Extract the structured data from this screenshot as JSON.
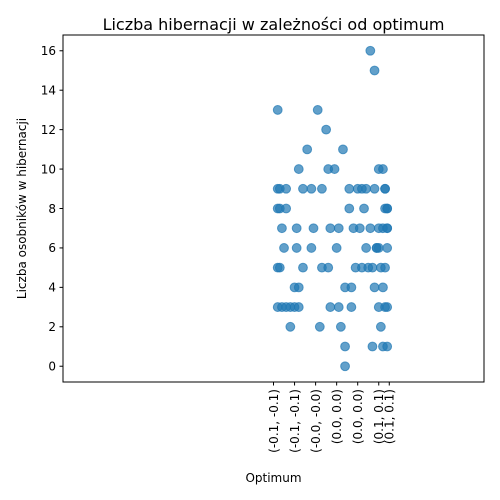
{
  "chart_data": {
    "type": "scatter",
    "title": "Liczba hibernacji w zależności od optimum",
    "xlabel": "Optimum",
    "ylabel": "Liczba osobników w hibernacji",
    "x_categories": [
      "(-0.1, -0.1)",
      "(-0.1, -0.1)",
      "(-0.0, -0.0)",
      "(0.0, 0.0)",
      "(0.0, 0.0)",
      "(0.1, 0.1)",
      "(0.1, 0.1)"
    ],
    "ylim": [
      -0.8,
      16.8
    ],
    "yticks": [
      0,
      2,
      4,
      6,
      8,
      10,
      12,
      14,
      16
    ],
    "grid": false,
    "legend": "none",
    "color": "#1f77b4",
    "opacity": 0.7,
    "points": [
      {
        "x": -0.098,
        "y": 13
      },
      {
        "x": -0.098,
        "y": 9
      },
      {
        "x": -0.097,
        "y": 9
      },
      {
        "x": -0.098,
        "y": 8
      },
      {
        "x": -0.097,
        "y": 8
      },
      {
        "x": -0.096,
        "y": 7
      },
      {
        "x": -0.095,
        "y": 6
      },
      {
        "x": -0.098,
        "y": 5
      },
      {
        "x": -0.097,
        "y": 5
      },
      {
        "x": -0.098,
        "y": 3
      },
      {
        "x": -0.096,
        "y": 3
      },
      {
        "x": -0.094,
        "y": 3
      },
      {
        "x": -0.092,
        "y": 3
      },
      {
        "x": -0.09,
        "y": 3
      },
      {
        "x": -0.088,
        "y": 3
      },
      {
        "x": -0.092,
        "y": 2
      },
      {
        "x": -0.09,
        "y": 4
      },
      {
        "x": -0.088,
        "y": 4
      },
      {
        "x": -0.094,
        "y": 9
      },
      {
        "x": -0.094,
        "y": 8
      },
      {
        "x": -0.088,
        "y": 10
      },
      {
        "x": -0.086,
        "y": 9
      },
      {
        "x": -0.089,
        "y": 7
      },
      {
        "x": -0.089,
        "y": 6
      },
      {
        "x": -0.086,
        "y": 5
      },
      {
        "x": -0.084,
        "y": 11
      },
      {
        "x": -0.082,
        "y": 9
      },
      {
        "x": -0.081,
        "y": 7
      },
      {
        "x": -0.082,
        "y": 6
      },
      {
        "x": -0.079,
        "y": 13
      },
      {
        "x": -0.077,
        "y": 9
      },
      {
        "x": -0.077,
        "y": 5
      },
      {
        "x": -0.078,
        "y": 2
      },
      {
        "x": -0.075,
        "y": 12
      },
      {
        "x": -0.074,
        "y": 10
      },
      {
        "x": -0.073,
        "y": 7
      },
      {
        "x": -0.074,
        "y": 5
      },
      {
        "x": -0.073,
        "y": 3
      },
      {
        "x": -0.071,
        "y": 10
      },
      {
        "x": -0.07,
        "y": 6
      },
      {
        "x": -0.069,
        "y": 7
      },
      {
        "x": -0.069,
        "y": 3
      },
      {
        "x": -0.067,
        "y": 11
      },
      {
        "x": -0.068,
        "y": 2
      },
      {
        "x": -0.066,
        "y": 4
      },
      {
        "x": -0.066,
        "y": 1
      },
      {
        "x": -0.066,
        "y": 0
      },
      {
        "x": -0.064,
        "y": 9
      },
      {
        "x": -0.064,
        "y": 8
      },
      {
        "x": -0.063,
        "y": 4
      },
      {
        "x": -0.063,
        "y": 3
      },
      {
        "x": -0.062,
        "y": 7
      },
      {
        "x": -0.061,
        "y": 5
      },
      {
        "x": -0.06,
        "y": 9
      },
      {
        "x": -0.059,
        "y": 7
      },
      {
        "x": -0.058,
        "y": 9
      },
      {
        "x": -0.058,
        "y": 5
      },
      {
        "x": -0.057,
        "y": 8
      },
      {
        "x": -0.056,
        "y": 9
      },
      {
        "x": -0.056,
        "y": 6
      },
      {
        "x": -0.055,
        "y": 5
      },
      {
        "x": -0.054,
        "y": 7
      },
      {
        "x": -0.054,
        "y": 16
      },
      {
        "x": -0.053,
        "y": 5
      },
      {
        "x": -0.053,
        "y": 1
      },
      {
        "x": -0.052,
        "y": 15
      },
      {
        "x": -0.052,
        "y": 9
      },
      {
        "x": -0.052,
        "y": 4
      },
      {
        "x": -0.051,
        "y": 6
      },
      {
        "x": -0.051,
        "y": 6
      },
      {
        "x": -0.05,
        "y": 7
      },
      {
        "x": -0.05,
        "y": 10
      },
      {
        "x": -0.05,
        "y": 6
      },
      {
        "x": -0.05,
        "y": 3
      },
      {
        "x": -0.049,
        "y": 5
      },
      {
        "x": -0.049,
        "y": 2
      },
      {
        "x": -0.048,
        "y": 10
      },
      {
        "x": -0.048,
        "y": 7
      },
      {
        "x": -0.048,
        "y": 1
      },
      {
        "x": -0.048,
        "y": 4
      },
      {
        "x": -0.047,
        "y": 9
      },
      {
        "x": -0.047,
        "y": 9
      },
      {
        "x": -0.047,
        "y": 8
      },
      {
        "x": -0.047,
        "y": 5
      },
      {
        "x": -0.047,
        "y": 3
      },
      {
        "x": -0.046,
        "y": 8
      },
      {
        "x": -0.046,
        "y": 7
      },
      {
        "x": -0.046,
        "y": 6
      },
      {
        "x": -0.046,
        "y": 3
      },
      {
        "x": -0.046,
        "y": 1
      },
      {
        "x": -0.046,
        "y": 8
      },
      {
        "x": -0.046,
        "y": 7
      }
    ]
  }
}
